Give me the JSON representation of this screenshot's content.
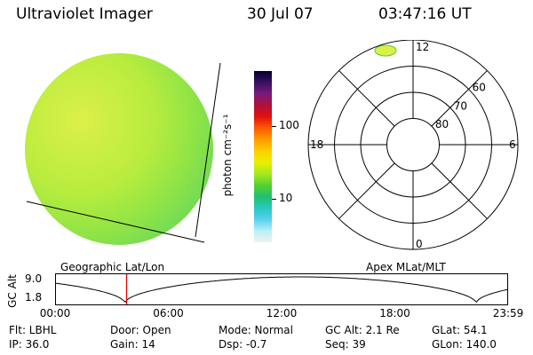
{
  "header": {
    "title": "Ultraviolet Imager",
    "date": "30 Jul 07",
    "time": "03:47:16 UT"
  },
  "globe": {
    "label": "Geographic Lat/Lon",
    "fill_colors": [
      "#dcf04a",
      "#b8ec3e",
      "#90e446",
      "#6fd858",
      "#48c8d8"
    ]
  },
  "colorbar": {
    "unit_label": "photon cm⁻²s⁻¹",
    "ticks": [
      {
        "label": "100",
        "value": 100
      },
      {
        "label": "10",
        "value": 10
      }
    ],
    "colors": [
      "#000033",
      "#3a1060",
      "#7a1a7a",
      "#b0103a",
      "#e01010",
      "#ff5a00",
      "#ff9a00",
      "#ffd000",
      "#e8f000",
      "#a8e81e",
      "#58d030",
      "#20c070",
      "#28c8c0",
      "#58d0f0",
      "#b8f0f8",
      "#f0f0f0"
    ]
  },
  "polar": {
    "label": "Apex MLat/MLT",
    "mlt_labels": {
      "top": "12",
      "left": "18",
      "right": "6",
      "bottom": "0"
    },
    "lat_labels": [
      {
        "label": "60",
        "lat": 60
      },
      {
        "label": "70",
        "lat": 70
      },
      {
        "label": "80",
        "lat": 80
      }
    ]
  },
  "alt_plot": {
    "ylabel": "GC Alt",
    "ymax_label": "9.0",
    "ymin_label": "1.8",
    "time_ticks": [
      "00:00",
      "06:00",
      "12:00",
      "18:00",
      "23:59"
    ],
    "current_time_hours": 3.79
  },
  "info": {
    "flt": "Flt: LBHL",
    "ip": "IP: 36.0",
    "door": "Door: Open",
    "gain": "Gain: 14",
    "mode": "Mode: Normal",
    "dsp": "Dsp:   -0.7",
    "gcalt": "GC Alt: 2.1 Re",
    "seq": "Seq: 39",
    "glat": "GLat:  54.1",
    "glon": "GLon: 140.0"
  }
}
